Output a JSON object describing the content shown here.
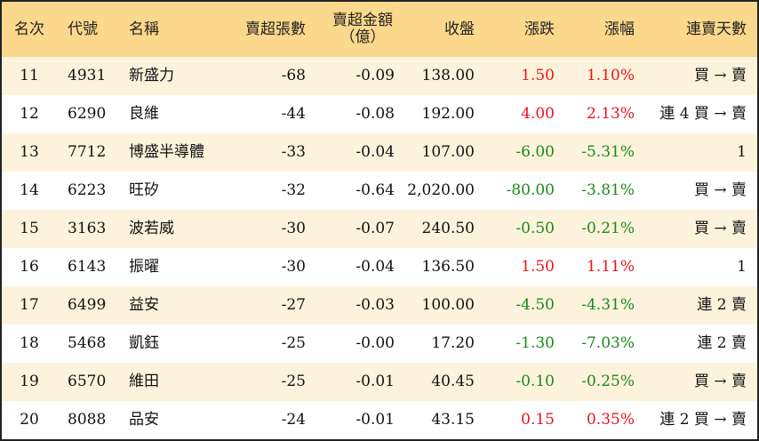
{
  "table": {
    "headers": [
      "名次",
      "代號",
      "名稱",
      "賣超張數",
      "賣超金額\n（億）",
      "收盤",
      "漲跌",
      "漲幅",
      "連賣天數"
    ],
    "rows": [
      [
        "11",
        "4931",
        "新盛力",
        "-68",
        "-0.09",
        "138.00",
        "1.50",
        "1.10%",
        "買 → 賣"
      ],
      [
        "12",
        "6290",
        "良維",
        "-44",
        "-0.08",
        "192.00",
        "4.00",
        "2.13%",
        "連 4 買 → 賣"
      ],
      [
        "13",
        "7712",
        "博盛半導體",
        "-33",
        "-0.04",
        "107.00",
        "-6.00",
        "-5.31%",
        "1"
      ],
      [
        "14",
        "6223",
        "旺矽",
        "-32",
        "-0.64",
        "2,020.00",
        "-80.00",
        "-3.81%",
        "買 → 賣"
      ],
      [
        "15",
        "3163",
        "波若威",
        "-30",
        "-0.07",
        "240.50",
        "-0.50",
        "-0.21%",
        "買 → 賣"
      ],
      [
        "16",
        "6143",
        "振曜",
        "-30",
        "-0.04",
        "136.50",
        "1.50",
        "1.11%",
        "1"
      ],
      [
        "17",
        "6499",
        "益安",
        "-27",
        "-0.03",
        "100.00",
        "-4.50",
        "-4.31%",
        "連 2 賣"
      ],
      [
        "18",
        "5468",
        "凱鈺",
        "-25",
        "-0.00",
        "17.20",
        "-1.30",
        "-7.03%",
        "連 2 賣"
      ],
      [
        "19",
        "6570",
        "維田",
        "-25",
        "-0.01",
        "40.45",
        "-0.10",
        "-0.25%",
        "買 → 賣"
      ],
      [
        "20",
        "8088",
        "品安",
        "-24",
        "-0.01",
        "43.15",
        "0.15",
        "0.35%",
        "連 2 買 → 賣"
      ]
    ],
    "up_color": "#e8141b",
    "down_color": "#1a8a1a"
  }
}
